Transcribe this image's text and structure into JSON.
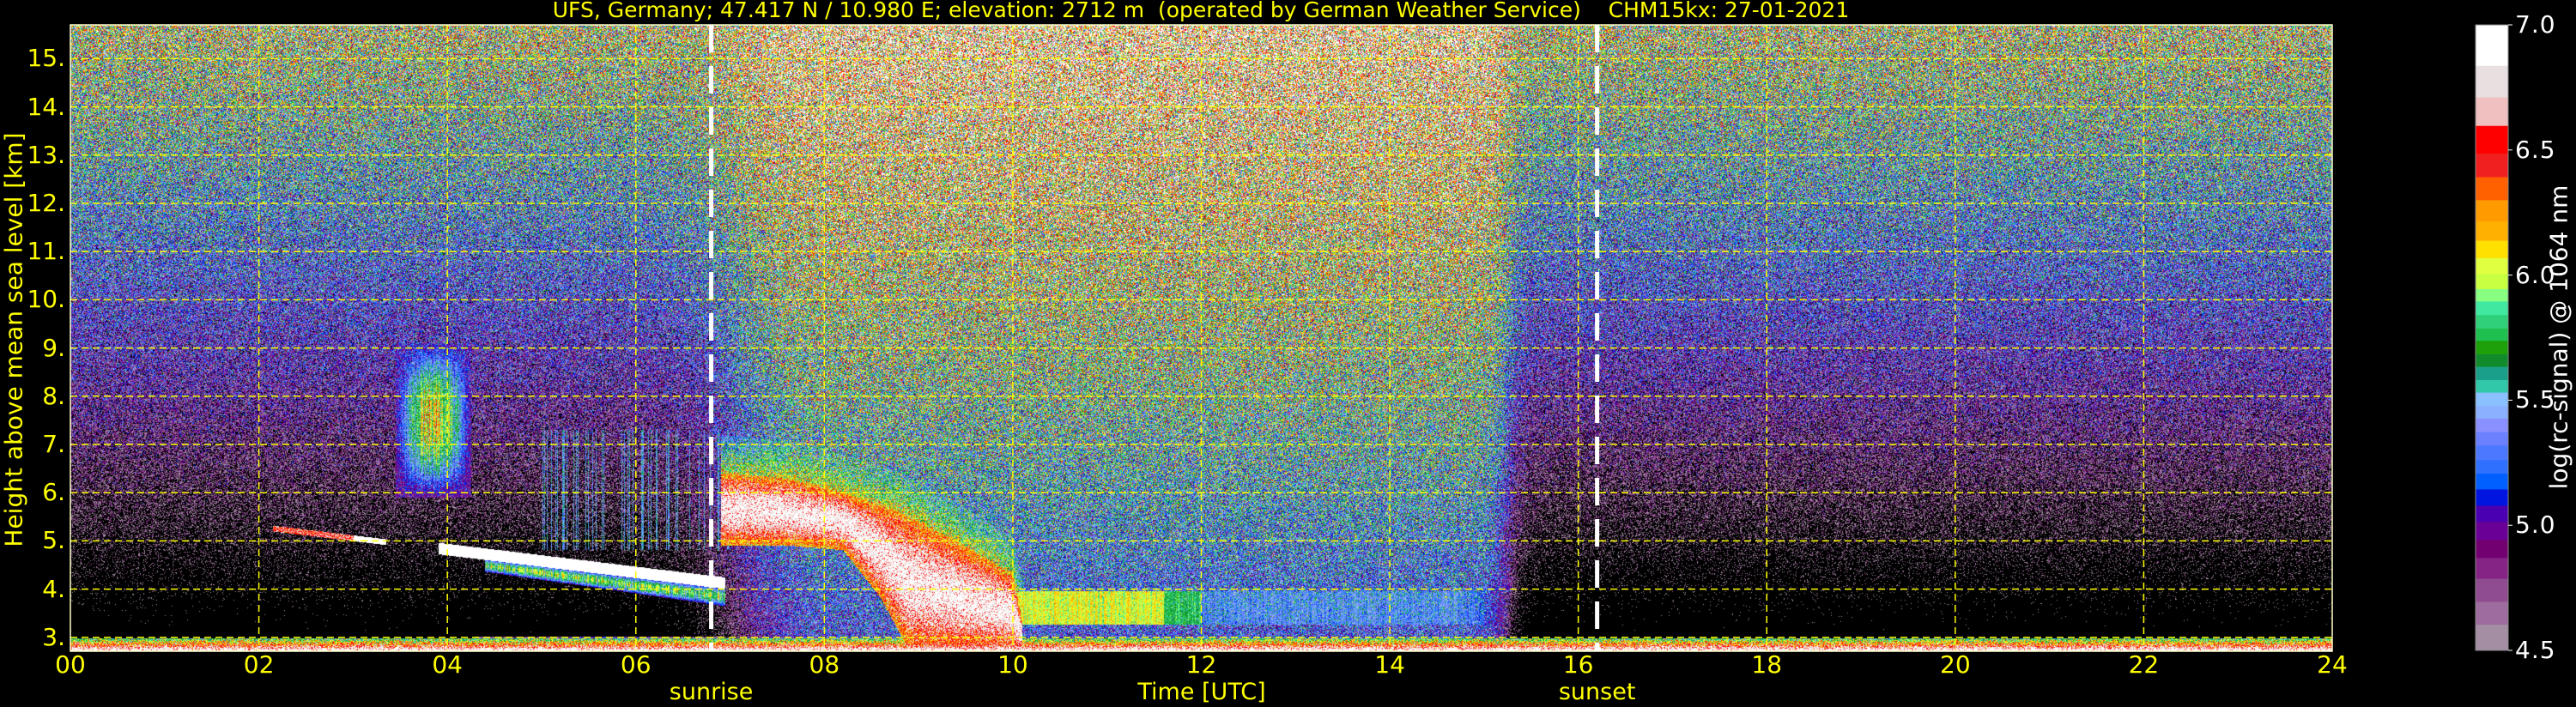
{
  "chart_data": {
    "type": "heatmap",
    "title": "UFS, Germany; 47.417 N / 10.980 E; elevation: 2712 m  (operated by German Weather Service)    CHM15kx: 27-01-2021",
    "xlabel": "Time [UTC]",
    "ylabel": "Height above mean sea level [km]",
    "xlim": [
      0,
      24
    ],
    "ylim": [
      2.712,
      15.7
    ],
    "x_ticks": [
      "00",
      "02",
      "04",
      "06",
      "08",
      "10",
      "12",
      "14",
      "16",
      "18",
      "20",
      "22",
      "24"
    ],
    "x_tick_values": [
      0,
      2,
      4,
      6,
      8,
      10,
      12,
      14,
      16,
      18,
      20,
      22,
      24
    ],
    "y_ticks": [
      "3.",
      "4.",
      "5.",
      "6.",
      "7.",
      "8.",
      "9.",
      "10.",
      "11.",
      "12.",
      "13.",
      "14.",
      "15."
    ],
    "y_tick_values": [
      3,
      4,
      5,
      6,
      7,
      8,
      9,
      10,
      11,
      12,
      13,
      14,
      15
    ],
    "grid": true,
    "grid_color": "#ffff00",
    "text_color": "#ffff00",
    "background": "#000000",
    "annotations": [
      {
        "text": "sunrise",
        "x": 6.8,
        "line_color": "#ffffff"
      },
      {
        "text": "sunset",
        "x": 16.2,
        "line_color": "#ffffff"
      }
    ],
    "colorbar": {
      "label": "log(rc-signal) @ 1064 nm",
      "range": [
        4.5,
        7.0
      ],
      "ticks": [
        "4.5",
        "5.0",
        "5.5",
        "6.0",
        "6.5",
        "7.0"
      ],
      "tick_values": [
        4.5,
        5.0,
        5.5,
        6.0,
        6.5,
        7.0
      ],
      "bounds": [
        4.5,
        4.604,
        4.696,
        4.788,
        4.871,
        4.943,
        5.015,
        5.08,
        5.145,
        5.208,
        5.262,
        5.32,
        5.374,
        5.428,
        5.478,
        5.532,
        5.582,
        5.635,
        5.685,
        5.739,
        5.788,
        5.842,
        5.896,
        5.946,
        6.006,
        6.069,
        6.139,
        6.216,
        6.301,
        6.393,
        6.487,
        6.598,
        6.712,
        6.838,
        7.0
      ],
      "colors": [
        "#a48ea4",
        "#9e6c9e",
        "#8f4c8f",
        "#862486",
        "#730070",
        "#6a0096",
        "#4a00b0",
        "#0015e0",
        "#0060ff",
        "#3070ff",
        "#4c78ff",
        "#6a80ff",
        "#8a90ff",
        "#8ab0ff",
        "#8ac0ff",
        "#30c8a8",
        "#1aa08a",
        "#108a2a",
        "#1ea00a",
        "#20c050",
        "#30d07a",
        "#40e8a0",
        "#88ff80",
        "#c8ff40",
        "#e0ff40",
        "#ffe000",
        "#ffb000",
        "#ff9a00",
        "#ff6000",
        "#f02020",
        "#ff0000",
        "#f0c0c0",
        "#e8e0e0",
        "#ffffff"
      ]
    }
  }
}
